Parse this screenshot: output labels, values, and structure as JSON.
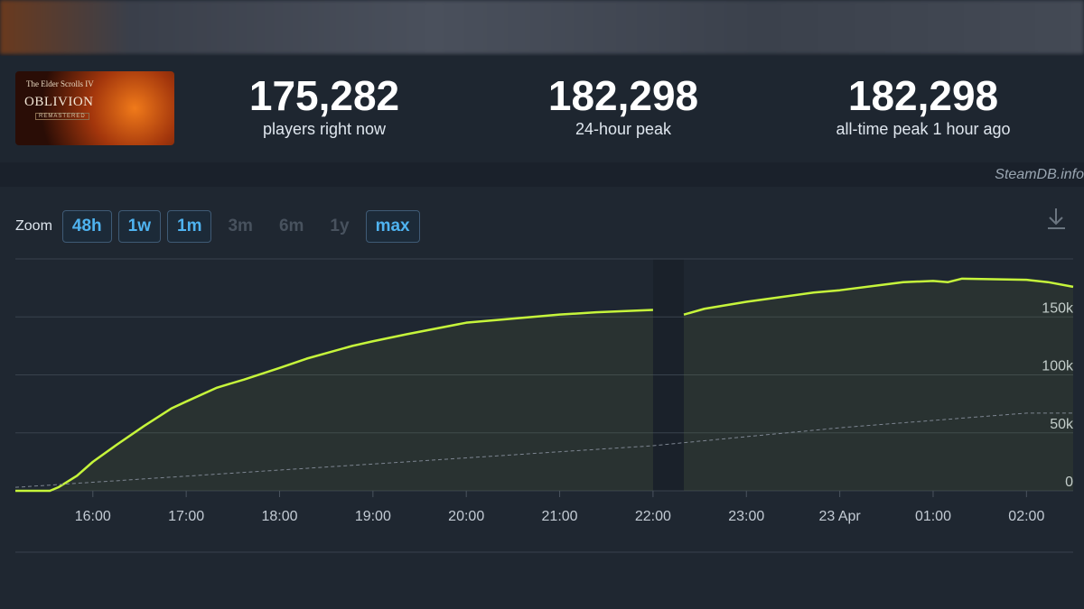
{
  "game_art": {
    "subtitle": "The Elder Scrolls IV",
    "title": "OBLIVION",
    "edition": "REMASTERED"
  },
  "stats": [
    {
      "value": "175,282",
      "label": "players right now"
    },
    {
      "value": "182,298",
      "label": "24-hour peak"
    },
    {
      "value": "182,298",
      "label": "all-time peak 1 hour ago"
    }
  ],
  "watermark": "SteamDB.info",
  "zoom": {
    "label": "Zoom",
    "buttons": [
      {
        "label": "48h",
        "enabled": true
      },
      {
        "label": "1w",
        "enabled": true
      },
      {
        "label": "1m",
        "enabled": true
      },
      {
        "label": "3m",
        "enabled": false
      },
      {
        "label": "6m",
        "enabled": false
      },
      {
        "label": "1y",
        "enabled": false
      },
      {
        "label": "max",
        "enabled": true
      }
    ]
  },
  "chart_data": {
    "type": "line",
    "x": [
      15.17,
      15.54,
      15.63,
      15.83,
      16.0,
      16.26,
      16.55,
      16.84,
      17.0,
      17.33,
      17.62,
      18.0,
      18.29,
      18.78,
      19.0,
      19.36,
      20.0,
      20.42,
      21.0,
      21.39,
      22.0,
      22.15,
      22.33,
      22.55,
      23.0,
      23.72,
      24.0,
      24.49,
      24.68,
      25.0,
      25.16,
      25.31,
      26.0,
      26.23,
      26.5
    ],
    "series": [
      {
        "color": "#c6f53b",
        "style": "solid",
        "fill": true,
        "values": [
          0,
          0,
          3000,
          13000,
          25000,
          40000,
          56000,
          71000,
          77000,
          89000,
          96000,
          106000,
          114000,
          125000,
          129000,
          135000,
          145000,
          148000,
          152000,
          154000,
          156000,
          null,
          152000,
          157000,
          163000,
          171000,
          173000,
          178000,
          180000,
          181000,
          180000,
          183000,
          182000,
          180000,
          176000
        ]
      },
      {
        "color": "#7d8591",
        "style": "dashed",
        "fill": false,
        "values": [
          3000,
          4900,
          5400,
          6500,
          7400,
          8700,
          10300,
          11800,
          12600,
          14400,
          15900,
          17900,
          19400,
          22000,
          23100,
          25000,
          28400,
          30600,
          33700,
          35700,
          38900,
          40100,
          41500,
          43200,
          46700,
          52200,
          54400,
          57500,
          58700,
          60700,
          61700,
          62700,
          67000,
          67000,
          67000
        ]
      }
    ],
    "xlim": [
      15.17,
      26.5
    ],
    "xticks": [
      {
        "value": 16,
        "label": "16:00"
      },
      {
        "value": 17,
        "label": "17:00"
      },
      {
        "value": 18,
        "label": "18:00"
      },
      {
        "value": 19,
        "label": "19:00"
      },
      {
        "value": 20,
        "label": "20:00"
      },
      {
        "value": 21,
        "label": "21:00"
      },
      {
        "value": 22,
        "label": "22:00"
      },
      {
        "value": 23,
        "label": "23:00"
      },
      {
        "value": 24,
        "label": "23 Apr"
      },
      {
        "value": 25,
        "label": "01:00"
      },
      {
        "value": 26,
        "label": "02:00"
      }
    ],
    "ylim": [
      0,
      200000
    ],
    "yticks": [
      0,
      {
        "value": 50000,
        "label": "50k"
      },
      {
        "value": 100000,
        "label": "100k"
      },
      {
        "value": 150000,
        "label": "150k"
      }
    ],
    "grid": true
  }
}
